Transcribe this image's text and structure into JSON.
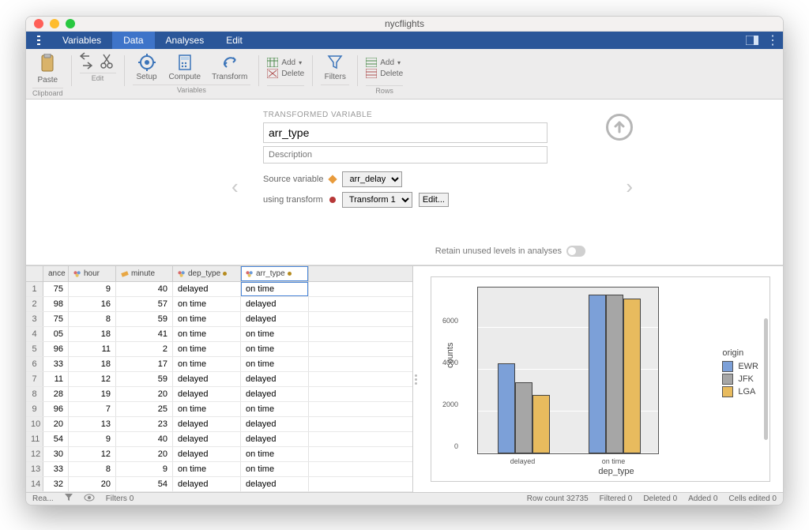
{
  "window": {
    "title": "nycflights"
  },
  "menubar": {
    "items": [
      "Variables",
      "Data",
      "Analyses",
      "Edit"
    ],
    "activeIndex": 1
  },
  "ribbon": {
    "paste": "Paste",
    "clipboard": "Clipboard",
    "edit": "Edit",
    "setup": "Setup",
    "compute": "Compute",
    "transform": "Transform",
    "variables": "Variables",
    "add": "Add",
    "delete": "Delete",
    "filters": "Filters",
    "rows": "Rows"
  },
  "transform": {
    "label": "TRANSFORMED VARIABLE",
    "name": "arr_type",
    "description_placeholder": "Description",
    "source_label": "Source variable",
    "source_value": "arr_delay",
    "using_label": "using transform",
    "using_value": "Transform 1",
    "edit": "Edit...",
    "retain": "Retain unused levels in analyses"
  },
  "table": {
    "columns": [
      {
        "key": "ance",
        "label": "ance",
        "icon": "none",
        "width": 32
      },
      {
        "key": "hour",
        "label": "hour",
        "icon": "nominal"
      },
      {
        "key": "minute",
        "label": "minute",
        "icon": "ruler"
      },
      {
        "key": "dep_type",
        "label": "dep_type",
        "icon": "nominal",
        "dotted": true
      },
      {
        "key": "arr_type",
        "label": "arr_type",
        "icon": "nominal",
        "dotted": true,
        "selected": true
      }
    ],
    "rows": [
      {
        "ance": "75",
        "hour": "9",
        "minute": "40",
        "dep_type": "delayed",
        "arr_type": "on time"
      },
      {
        "ance": "98",
        "hour": "16",
        "minute": "57",
        "dep_type": "on time",
        "arr_type": "delayed"
      },
      {
        "ance": "75",
        "hour": "8",
        "minute": "59",
        "dep_type": "on time",
        "arr_type": "delayed"
      },
      {
        "ance": "05",
        "hour": "18",
        "minute": "41",
        "dep_type": "on time",
        "arr_type": "on time"
      },
      {
        "ance": "96",
        "hour": "11",
        "minute": "2",
        "dep_type": "on time",
        "arr_type": "on time"
      },
      {
        "ance": "33",
        "hour": "18",
        "minute": "17",
        "dep_type": "on time",
        "arr_type": "on time"
      },
      {
        "ance": "11",
        "hour": "12",
        "minute": "59",
        "dep_type": "delayed",
        "arr_type": "delayed"
      },
      {
        "ance": "28",
        "hour": "19",
        "minute": "20",
        "dep_type": "delayed",
        "arr_type": "delayed"
      },
      {
        "ance": "96",
        "hour": "7",
        "minute": "25",
        "dep_type": "on time",
        "arr_type": "on time"
      },
      {
        "ance": "20",
        "hour": "13",
        "minute": "23",
        "dep_type": "delayed",
        "arr_type": "delayed"
      },
      {
        "ance": "54",
        "hour": "9",
        "minute": "40",
        "dep_type": "delayed",
        "arr_type": "delayed"
      },
      {
        "ance": "30",
        "hour": "12",
        "minute": "20",
        "dep_type": "delayed",
        "arr_type": "on time"
      },
      {
        "ance": "33",
        "hour": "8",
        "minute": "9",
        "dep_type": "on time",
        "arr_type": "on time"
      },
      {
        "ance": "32",
        "hour": "20",
        "minute": "54",
        "dep_type": "delayed",
        "arr_type": "delayed"
      }
    ]
  },
  "status": {
    "ready": "Rea...",
    "filters": "Filters 0",
    "row_count": "Row count 32735",
    "filtered": "Filtered 0",
    "deleted": "Deleted 0",
    "added": "Added 0",
    "cells": "Cells edited 0"
  },
  "chart": {
    "type": "bar",
    "categories": [
      "delayed",
      "on time"
    ],
    "series": [
      {
        "name": "EWR",
        "color": "#7ca0d8",
        "values": [
          4300,
          7600
        ]
      },
      {
        "name": "JFK",
        "color": "#a6a6a6",
        "values": [
          3400,
          7600
        ]
      },
      {
        "name": "LGA",
        "color": "#e8bb5e",
        "values": [
          2800,
          7400
        ]
      }
    ],
    "ylim": [
      0,
      8000
    ],
    "yticks": [
      0,
      2000,
      4000,
      6000
    ],
    "ylabel": "counts",
    "xlabel": "dep_type",
    "legend_title": "origin",
    "panel_bg": "#ebebeb",
    "grid_color": "#ffffff",
    "border_color": "#555555"
  }
}
